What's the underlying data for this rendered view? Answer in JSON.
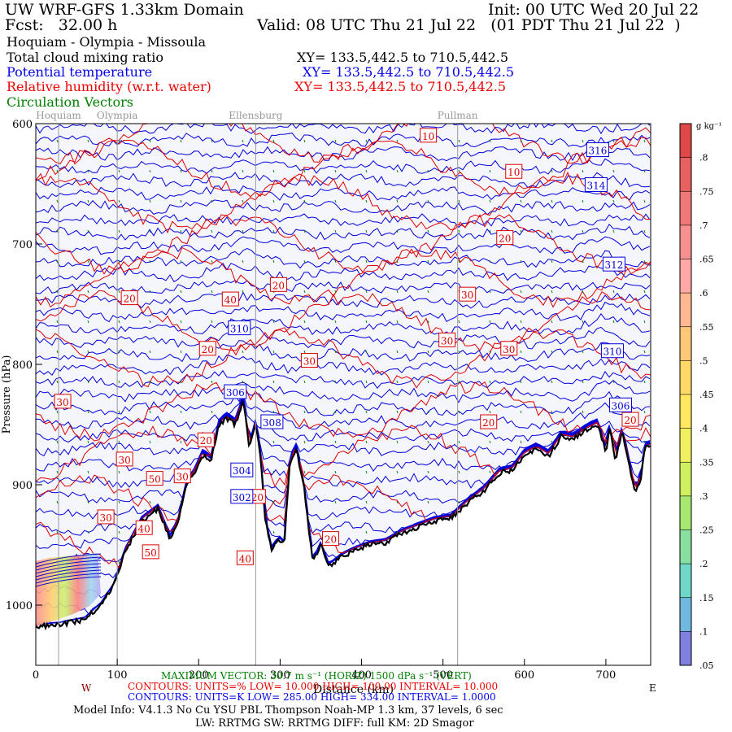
{
  "header": {
    "title": "UW WRF-GFS 1.33km Domain",
    "init": "Init: 00 UTC Wed 20 Jul 22",
    "fcst": "Fcst:   32.00 h",
    "valid": "Valid: 08 UTC Thu 21 Jul 22   (01 PDT Thu 21 Jul 22  )",
    "route": "Hoquiam - Olympia - Missoula",
    "legend": [
      {
        "label": "Total cloud mixing ratio",
        "xy": "XY= 133.5,442.5 to 710.5,442.5",
        "color": "#000000"
      },
      {
        "label": "Potential temperature",
        "xy": "XY= 133.5,442.5 to 710.5,442.5",
        "color": "#0000ee"
      },
      {
        "label": "Relative humidity (w.r.t. water)",
        "xy": "XY= 133.5,442.5 to 710.5,442.5",
        "color": "#ee0000"
      },
      {
        "label": "Circulation Vectors",
        "xy": "",
        "color": "#008000"
      }
    ]
  },
  "chart_data": {
    "type": "cross-section",
    "xlabel": "Distance (km)",
    "ylabel": "Pressure (hPa)",
    "xlim": [
      0,
      755
    ],
    "ylim": [
      1050,
      600
    ],
    "x_ticks": [
      "0",
      "100",
      "200",
      "300",
      "400",
      "500",
      "600",
      "700"
    ],
    "y_ticks": [
      "600",
      "700",
      "800",
      "900",
      "1000"
    ],
    "west_label": "W",
    "east_label": "E",
    "stations": [
      {
        "name": "Hoquiam",
        "km": 28
      },
      {
        "name": "Olympia",
        "km": 100
      },
      {
        "name": "Ellensburg",
        "km": 270
      },
      {
        "name": "Pullman",
        "km": 518
      }
    ],
    "terrain_profile": {
      "km": [
        0,
        30,
        60,
        80,
        95,
        110,
        130,
        150,
        165,
        175,
        185,
        195,
        205,
        215,
        225,
        235,
        245,
        255,
        262,
        270,
        275,
        282,
        290,
        298,
        305,
        312,
        320,
        330,
        340,
        350,
        360,
        375,
        390,
        410,
        430,
        450,
        470,
        490,
        510,
        530,
        550,
        570,
        585,
        600,
        615,
        630,
        645,
        660,
        675,
        690,
        700,
        705,
        712,
        720,
        728,
        735,
        742,
        748,
        755
      ],
      "hPa": [
        1018,
        1016,
        1012,
        1000,
        985,
        955,
        930,
        920,
        945,
        930,
        900,
        890,
        875,
        880,
        850,
        845,
        850,
        830,
        870,
        850,
        870,
        930,
        955,
        945,
        950,
        880,
        870,
        905,
        965,
        950,
        968,
        960,
        955,
        950,
        948,
        940,
        935,
        930,
        928,
        915,
        905,
        890,
        888,
        875,
        870,
        876,
        860,
        862,
        855,
        850,
        872,
        852,
        880,
        855,
        880,
        905,
        900,
        870,
        868
      ]
    },
    "theta_labels": [
      {
        "value": "316",
        "km": 690,
        "hPa": 622
      },
      {
        "value": "314",
        "km": 688,
        "hPa": 651
      },
      {
        "value": "312",
        "km": 710,
        "hPa": 717
      },
      {
        "value": "310",
        "km": 250,
        "hPa": 770
      },
      {
        "value": "310",
        "km": 708,
        "hPa": 789
      },
      {
        "value": "308",
        "km": 290,
        "hPa": 848
      },
      {
        "value": "306",
        "km": 245,
        "hPa": 823
      },
      {
        "value": "306",
        "km": 718,
        "hPa": 834
      },
      {
        "value": "304",
        "km": 253,
        "hPa": 888
      },
      {
        "value": "302",
        "km": 253,
        "hPa": 910
      }
    ],
    "rh_labels": [
      {
        "value": "10",
        "km": 482,
        "hPa": 610
      },
      {
        "value": "10",
        "km": 587,
        "hPa": 640
      },
      {
        "value": "20",
        "km": 576,
        "hPa": 695
      },
      {
        "value": "20",
        "km": 298,
        "hPa": 734
      },
      {
        "value": "20",
        "km": 115,
        "hPa": 745
      },
      {
        "value": "20",
        "km": 211,
        "hPa": 787
      },
      {
        "value": "20",
        "km": 556,
        "hPa": 848
      },
      {
        "value": "20",
        "km": 362,
        "hPa": 945
      },
      {
        "value": "20",
        "km": 272,
        "hPa": 910
      },
      {
        "value": "20",
        "km": 209,
        "hPa": 863
      },
      {
        "value": "20",
        "km": 730,
        "hPa": 846
      },
      {
        "value": "30",
        "km": 33,
        "hPa": 831
      },
      {
        "value": "30",
        "km": 336,
        "hPa": 797
      },
      {
        "value": "30",
        "km": 530,
        "hPa": 742
      },
      {
        "value": "30",
        "km": 505,
        "hPa": 780
      },
      {
        "value": "30",
        "km": 581,
        "hPa": 787
      },
      {
        "value": "30",
        "km": 109,
        "hPa": 879
      },
      {
        "value": "30",
        "km": 86,
        "hPa": 927
      },
      {
        "value": "30",
        "km": 180,
        "hPa": 893
      },
      {
        "value": "40",
        "km": 239,
        "hPa": 746
      },
      {
        "value": "40",
        "km": 133,
        "hPa": 936
      },
      {
        "value": "40",
        "km": 257,
        "hPa": 961
      },
      {
        "value": "50",
        "km": 146,
        "hPa": 895
      },
      {
        "value": "50",
        "km": 141,
        "hPa": 956
      }
    ],
    "colorbar": {
      "units": "g kg⁻¹",
      "labels": [
        ".8",
        ".75",
        ".7",
        ".65",
        ".6",
        ".55",
        ".5",
        ".45",
        ".4",
        ".35",
        ".3",
        ".25",
        ".2",
        ".15",
        ".1",
        ".05"
      ],
      "colors": [
        "#e04848",
        "#e86060",
        "#f07878",
        "#f89090",
        "#ffa8a8",
        "#ffb890",
        "#ffc878",
        "#ffd868",
        "#ffe860",
        "#f0f060",
        "#d0f060",
        "#a8e870",
        "#88e0a0",
        "#70d8c8",
        "#70b8e0",
        "#8080e0"
      ]
    }
  },
  "footer": {
    "max_vector": "MAXIMUM VECTOR: 30.7 m s⁻¹ (HORIZ)    1500 dPa s⁻¹ (VERT)",
    "rh_contours": "CONTOURS:  UNITS=%  LOW=  10.000     HIGH=  100.00     INTERVAL=   10.000",
    "th_contours": "CONTOURS:  UNITS=K  LOW=  285.00     HIGH=  334.00     INTERVAL=   1.0000",
    "model_info": "Model Info: V4.1.3    No Cu    YSU PBL  Thompson    Noah-MP    1.3 km,  37 levels,    6 sec",
    "model_info2": "LW: RRTMG SW: RRTMG    DIFF: full    KM: 2D Smagor"
  }
}
